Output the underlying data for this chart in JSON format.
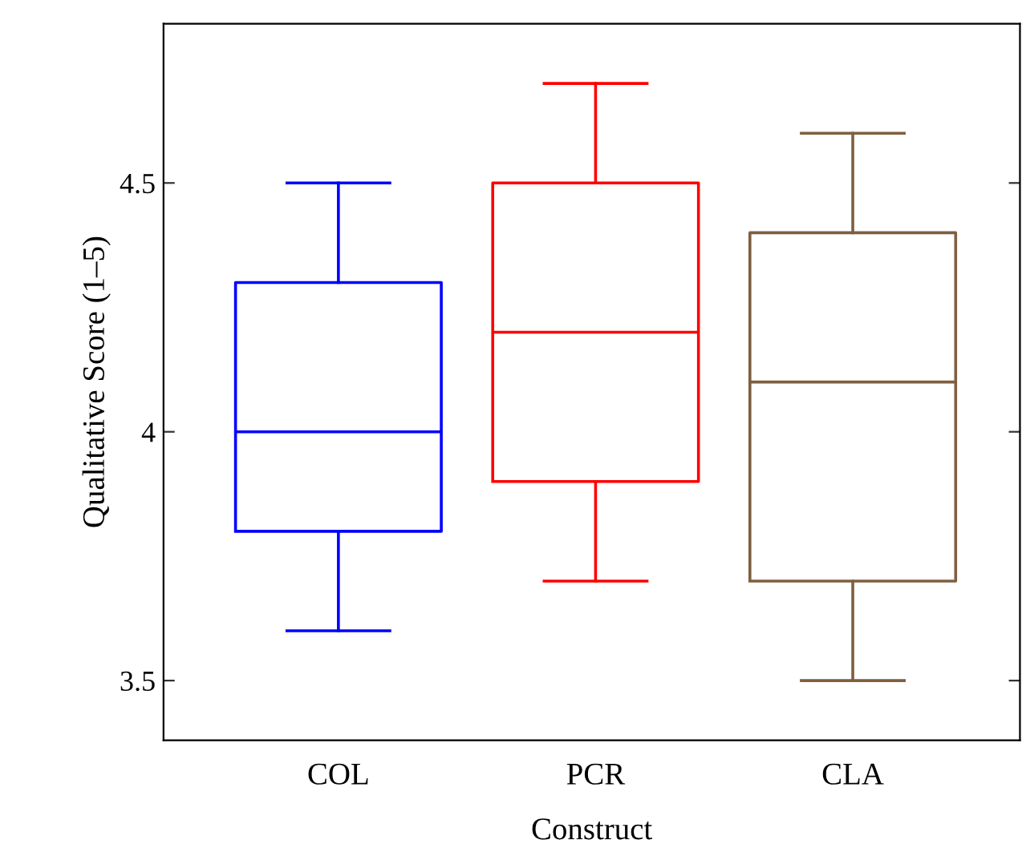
{
  "chart_data": {
    "type": "box",
    "xlabel": "Construct",
    "ylabel": "Qualitative Score (1–5)",
    "categories": [
      "COL",
      "PCR",
      "CLA"
    ],
    "colors": [
      "#0000ff",
      "#ff0000",
      "#7f5f3f"
    ],
    "boxes": [
      {
        "low": 3.6,
        "q1": 3.8,
        "median": 4.0,
        "q3": 4.3,
        "high": 4.5
      },
      {
        "low": 3.7,
        "q1": 3.9,
        "median": 4.2,
        "q3": 4.5,
        "high": 4.7
      },
      {
        "low": 3.5,
        "q1": 3.7,
        "median": 4.1,
        "q3": 4.4,
        "high": 4.6
      }
    ],
    "ylim": [
      3.38,
      4.82
    ],
    "yticks": [
      3.5,
      {
        "value": 4,
        "label": "4"
      },
      4.5
    ],
    "grid": false,
    "legend": false
  }
}
